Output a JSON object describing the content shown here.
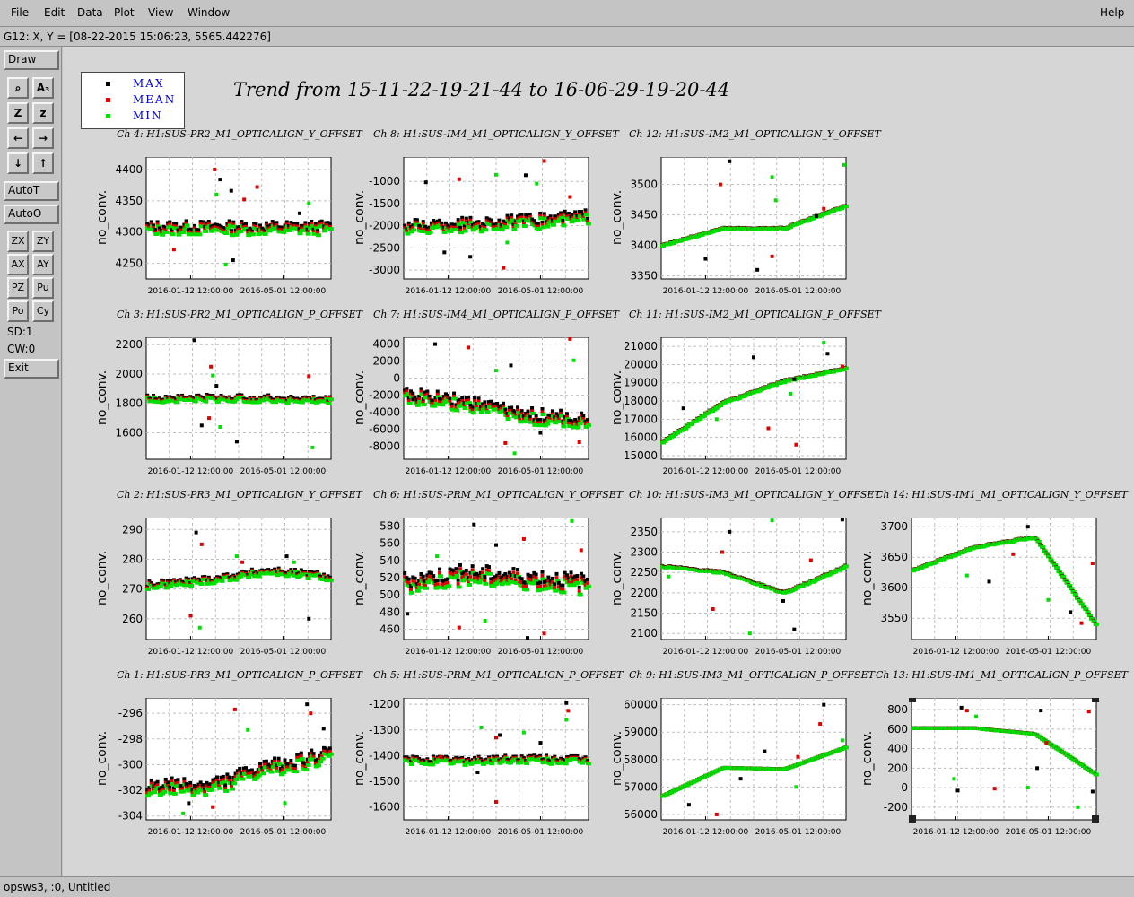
{
  "menu": {
    "file": "File",
    "edit": "Edit",
    "data": "Data",
    "plot": "Plot",
    "view": "View",
    "window": "Window",
    "help": "Help"
  },
  "cursor_readout": "G12: X, Y = [08-22-2015 15:06:23, 5565.442276]",
  "sidebar": {
    "draw": "Draw",
    "icons": [
      {
        "name": "tool-pick-icon",
        "glyph": "⌕"
      },
      {
        "name": "tool-as-icon",
        "glyph": "A₃"
      },
      {
        "name": "zoom-in-icon",
        "glyph": "Z"
      },
      {
        "name": "zoom-out-icon",
        "glyph": "z"
      },
      {
        "name": "arrow-left-icon",
        "glyph": "←"
      },
      {
        "name": "arrow-right-icon",
        "glyph": "→"
      },
      {
        "name": "arrow-down-icon",
        "glyph": "↓"
      },
      {
        "name": "arrow-up-icon",
        "glyph": "↑"
      }
    ],
    "autot": "AutoT",
    "autoo": "AutoO",
    "small_buttons": [
      "ZX",
      "ZY",
      "AX",
      "AY",
      "PZ",
      "Pu",
      "Po",
      "Cy"
    ],
    "sd": "SD:1",
    "cw": "CW:0",
    "exit": "Exit"
  },
  "legend": [
    {
      "label": "MAX",
      "color": "#000000"
    },
    {
      "label": "MEAN",
      "color": "#e00000"
    },
    {
      "label": "MIN",
      "color": "#00e000"
    }
  ],
  "trend_title": "Trend from 15-11-22-19-21-44 to 16-06-29-19-20-44",
  "ylabel": "no_conv.",
  "x_ticks": [
    "2016-01-12 12:00:00",
    "2016-05-01 12:00:00"
  ],
  "status": "opsws3, :0, Untitled",
  "chart_data": [
    {
      "type": "scatter",
      "title": "Ch 4: H1:SUS-PR2_M1_OPTICALIGN_Y_OFFSET",
      "ylabel": "no_conv.",
      "ylim": [
        4225,
        4420
      ],
      "yticks": [
        4250,
        4300,
        4350,
        4400
      ],
      "base": 4306,
      "spread": 8,
      "trend": [
        0,
        0,
        0,
        0
      ],
      "outliers": [
        [
          0.4,
          4384
        ],
        [
          0.37,
          4400
        ],
        [
          0.38,
          4360
        ],
        [
          0.46,
          4366
        ],
        [
          0.6,
          4372
        ],
        [
          0.43,
          4248
        ],
        [
          0.47,
          4255
        ],
        [
          0.53,
          4352
        ],
        [
          0.88,
          4346
        ],
        [
          0.83,
          4330
        ],
        [
          0.15,
          4272
        ]
      ]
    },
    {
      "type": "scatter",
      "title": "Ch 8: H1:SUS-IM4_M1_OPTICALIGN_Y_OFFSET",
      "ylabel": "no_conv.",
      "ylim": [
        -3200,
        -450
      ],
      "yticks": [
        -3000,
        -2500,
        -2000,
        -1500,
        -1000
      ],
      "base": -2050,
      "spread": 120,
      "trend": [
        0,
        60,
        120,
        250
      ],
      "outliers": [
        [
          0.12,
          -1020
        ],
        [
          0.3,
          -950
        ],
        [
          0.5,
          -850
        ],
        [
          0.66,
          -860
        ],
        [
          0.76,
          -540
        ],
        [
          0.72,
          -1050
        ],
        [
          0.36,
          -2700
        ],
        [
          0.54,
          -2950
        ],
        [
          0.56,
          -2380
        ],
        [
          0.22,
          -2600
        ],
        [
          0.9,
          -1350
        ]
      ]
    },
    {
      "type": "scatter",
      "title": "Ch 12: H1:SUS-IM2_M1_OPTICALIGN_Y_OFFSET",
      "ylabel": "no_conv.",
      "ylim": [
        3345,
        3545
      ],
      "yticks": [
        3350,
        3400,
        3450,
        3500
      ],
      "base": 3400,
      "spread": 1,
      "trend": [
        0,
        28,
        28,
        65
      ],
      "outliers": [
        [
          0.37,
          3538
        ],
        [
          0.32,
          3500
        ],
        [
          0.6,
          3512
        ],
        [
          0.52,
          3360
        ],
        [
          0.6,
          3382
        ],
        [
          0.99,
          3532
        ],
        [
          0.84,
          3448
        ],
        [
          0.88,
          3460
        ],
        [
          0.62,
          3474
        ],
        [
          0.24,
          3378
        ]
      ]
    },
    {
      "type": "scatter",
      "title": "Ch 3: H1:SUS-PR2_M1_OPTICALIGN_P_OFFSET",
      "ylabel": "no_conv.",
      "ylim": [
        1420,
        2250
      ],
      "yticks": [
        1600,
        1800,
        2000,
        2200
      ],
      "base": 1830,
      "spread": 18,
      "trend": [
        0,
        5,
        0,
        -10
      ],
      "outliers": [
        [
          0.26,
          2230
        ],
        [
          0.35,
          2050
        ],
        [
          0.36,
          1990
        ],
        [
          0.38,
          1920
        ],
        [
          0.34,
          1700
        ],
        [
          0.4,
          1640
        ],
        [
          0.49,
          1540
        ],
        [
          0.88,
          1985
        ],
        [
          0.9,
          1500
        ],
        [
          0.3,
          1650
        ]
      ]
    },
    {
      "type": "scatter",
      "title": "Ch 7: H1:SUS-IM4_M1_OPTICALIGN_P_OFFSET",
      "ylabel": "no_conv.",
      "ylim": [
        -9500,
        4800
      ],
      "yticks": [
        -8000,
        -6000,
        -4000,
        -2000,
        0,
        2000,
        4000
      ],
      "base": -2000,
      "spread": 700,
      "trend": [
        0,
        -1000,
        -2500,
        -3000
      ],
      "outliers": [
        [
          0.17,
          4000
        ],
        [
          0.35,
          3600
        ],
        [
          0.5,
          900
        ],
        [
          0.58,
          1500
        ],
        [
          0.9,
          4600
        ],
        [
          0.92,
          2100
        ],
        [
          0.05,
          -2500
        ],
        [
          0.55,
          -7600
        ],
        [
          0.6,
          -8800
        ],
        [
          0.74,
          -6400
        ],
        [
          0.95,
          -7500
        ]
      ]
    },
    {
      "type": "scatter",
      "title": "Ch 11: H1:SUS-IM2_M1_OPTICALIGN_P_OFFSET",
      "ylabel": "no_conv.",
      "ylim": [
        14800,
        21500
      ],
      "yticks": [
        15000,
        16000,
        17000,
        18000,
        19000,
        20000,
        21000
      ],
      "base": 17900,
      "spread": 40,
      "trend": [
        -2200,
        0,
        1200,
        1900
      ],
      "outliers": [
        [
          0.5,
          20400
        ],
        [
          0.58,
          16500
        ],
        [
          0.7,
          18400
        ],
        [
          0.72,
          19200
        ],
        [
          0.73,
          15600
        ],
        [
          0.88,
          21200
        ],
        [
          0.9,
          20600
        ],
        [
          0.98,
          19900
        ],
        [
          0.3,
          17000
        ],
        [
          0.12,
          17600
        ]
      ]
    },
    {
      "type": "scatter",
      "title": "Ch 2: H1:SUS-PR3_M1_OPTICALIGN_Y_OFFSET",
      "ylabel": "no_conv.",
      "ylim": [
        253,
        294
      ],
      "yticks": [
        260,
        270,
        280,
        290
      ],
      "base": 271,
      "spread": 1,
      "trend": [
        0,
        2,
        5,
        3
      ],
      "outliers": [
        [
          0.27,
          289
        ],
        [
          0.3,
          285
        ],
        [
          0.49,
          281
        ],
        [
          0.76,
          281
        ],
        [
          0.24,
          261
        ],
        [
          0.29,
          257
        ],
        [
          0.88,
          260
        ],
        [
          0.52,
          279
        ],
        [
          0.8,
          279
        ]
      ]
    },
    {
      "type": "scatter",
      "title": "Ch 6: H1:SUS-PRM_M1_OPTICALIGN_Y_OFFSET",
      "ylabel": "no_conv.",
      "ylim": [
        448,
        590
      ],
      "yticks": [
        460,
        480,
        500,
        520,
        540,
        560,
        580
      ],
      "base": 514,
      "spread": 9,
      "trend": [
        0,
        8,
        4,
        -2
      ],
      "outliers": [
        [
          0.38,
          582
        ],
        [
          0.65,
          565
        ],
        [
          0.91,
          586
        ],
        [
          0.02,
          478
        ],
        [
          0.3,
          462
        ],
        [
          0.44,
          470
        ],
        [
          0.67,
          450
        ],
        [
          0.76,
          455
        ],
        [
          0.18,
          545
        ],
        [
          0.5,
          558
        ],
        [
          0.96,
          552
        ]
      ]
    },
    {
      "type": "scatter",
      "title": "Ch 10: H1:SUS-IM3_M1_OPTICALIGN_Y_OFFSET",
      "ylabel": "no_conv.",
      "ylim": [
        2085,
        2385
      ],
      "yticks": [
        2100,
        2150,
        2200,
        2250,
        2300,
        2350
      ],
      "base": 2265,
      "spread": 2,
      "trend": [
        0,
        -15,
        -65,
        0
      ],
      "outliers": [
        [
          0.37,
          2350
        ],
        [
          0.33,
          2300
        ],
        [
          0.6,
          2378
        ],
        [
          0.98,
          2380
        ],
        [
          0.28,
          2160
        ],
        [
          0.48,
          2100
        ],
        [
          0.66,
          2180
        ],
        [
          0.81,
          2280
        ],
        [
          0.04,
          2240
        ],
        [
          0.72,
          2110
        ]
      ]
    },
    {
      "type": "scatter",
      "title": "Ch 14: H1:SUS-IM1_M1_OPTICALIGN_Y_OFFSET",
      "ylabel": "no_conv.",
      "ylim": [
        3515,
        3715
      ],
      "yticks": [
        3550,
        3600,
        3650,
        3700
      ],
      "base": 3628,
      "spread": 1,
      "trend": [
        0,
        38,
        55,
        -90
      ],
      "outliers": [
        [
          0.63,
          3700
        ],
        [
          0.98,
          3640
        ],
        [
          0.3,
          3620
        ],
        [
          0.42,
          3610
        ],
        [
          0.55,
          3655
        ],
        [
          0.74,
          3580
        ],
        [
          0.86,
          3560
        ],
        [
          0.92,
          3542
        ]
      ]
    },
    {
      "type": "scatter",
      "title": "Ch 1: H1:SUS-PR3_M1_OPTICALIGN_P_OFFSET",
      "ylabel": "no_conv.",
      "ylim": [
        -304.3,
        -294.8
      ],
      "yticks": [
        -304,
        -302,
        -300,
        -298,
        -296
      ],
      "base": -301.8,
      "spread": 0.5,
      "trend": [
        0,
        0,
        1.5,
        2.5
      ],
      "outliers": [
        [
          0.87,
          -295.3
        ],
        [
          0.48,
          -295.7
        ],
        [
          0.55,
          -297.3
        ],
        [
          0.96,
          -297.2
        ],
        [
          0.89,
          -296.0
        ],
        [
          0.2,
          -303.8
        ],
        [
          0.23,
          -303.0
        ],
        [
          0.36,
          -303.3
        ],
        [
          0.75,
          -303.0
        ]
      ]
    },
    {
      "type": "scatter",
      "title": "Ch 5: H1:SUS-PRM_M1_OPTICALIGN_P_OFFSET",
      "ylabel": "no_conv.",
      "ylim": [
        -1650,
        -1175
      ],
      "yticks": [
        -1600,
        -1500,
        -1400,
        -1300,
        -1200
      ],
      "base": -1420,
      "spread": 12,
      "trend": [
        0,
        0,
        5,
        0
      ],
      "outliers": [
        [
          0.88,
          -1195
        ],
        [
          0.89,
          -1225
        ],
        [
          0.42,
          -1290
        ],
        [
          0.52,
          -1320
        ],
        [
          0.5,
          -1330
        ],
        [
          0.88,
          -1260
        ],
        [
          0.4,
          -1465
        ],
        [
          0.5,
          -1580
        ],
        [
          0.65,
          -1310
        ],
        [
          0.74,
          -1350
        ],
        [
          0.2,
          -1405
        ]
      ]
    },
    {
      "type": "scatter",
      "title": "Ch 9: H1:SUS-IM3_M1_OPTICALIGN_P_OFFSET",
      "ylabel": "no_conv.",
      "ylim": [
        55800,
        60250
      ],
      "yticks": [
        56000,
        57000,
        58000,
        59000,
        60000
      ],
      "base": 56650,
      "spread": 5,
      "trend": [
        0,
        1050,
        1000,
        1800
      ],
      "outliers": [
        [
          0.15,
          56350
        ],
        [
          0.3,
          56000
        ],
        [
          0.37,
          57700
        ],
        [
          0.56,
          58300
        ],
        [
          0.74,
          58100
        ],
        [
          0.73,
          57000
        ],
        [
          0.88,
          60000
        ],
        [
          0.86,
          59300
        ],
        [
          0.98,
          58700
        ],
        [
          0.43,
          57300
        ]
      ]
    },
    {
      "type": "scatter",
      "title": "Ch 13: H1:SUS-IM1_M1_OPTICALIGN_P_OFFSET",
      "ylabel": "no_conv.",
      "ylim": [
        -330,
        920
      ],
      "yticks": [
        -200,
        0,
        200,
        400,
        600,
        800
      ],
      "base": 780,
      "spread": 2,
      "trend": [
        -170,
        -170,
        -230,
        -650
      ],
      "outliers": [
        [
          0.27,
          820
        ],
        [
          0.3,
          790
        ],
        [
          0.35,
          730
        ],
        [
          0.7,
          790
        ],
        [
          0.96,
          780
        ],
        [
          0.23,
          90
        ],
        [
          0.25,
          -30
        ],
        [
          0.45,
          -10
        ],
        [
          0.63,
          0
        ],
        [
          0.68,
          200
        ],
        [
          0.73,
          460
        ],
        [
          0.9,
          -200
        ],
        [
          0.98,
          -40
        ]
      ]
    }
  ]
}
